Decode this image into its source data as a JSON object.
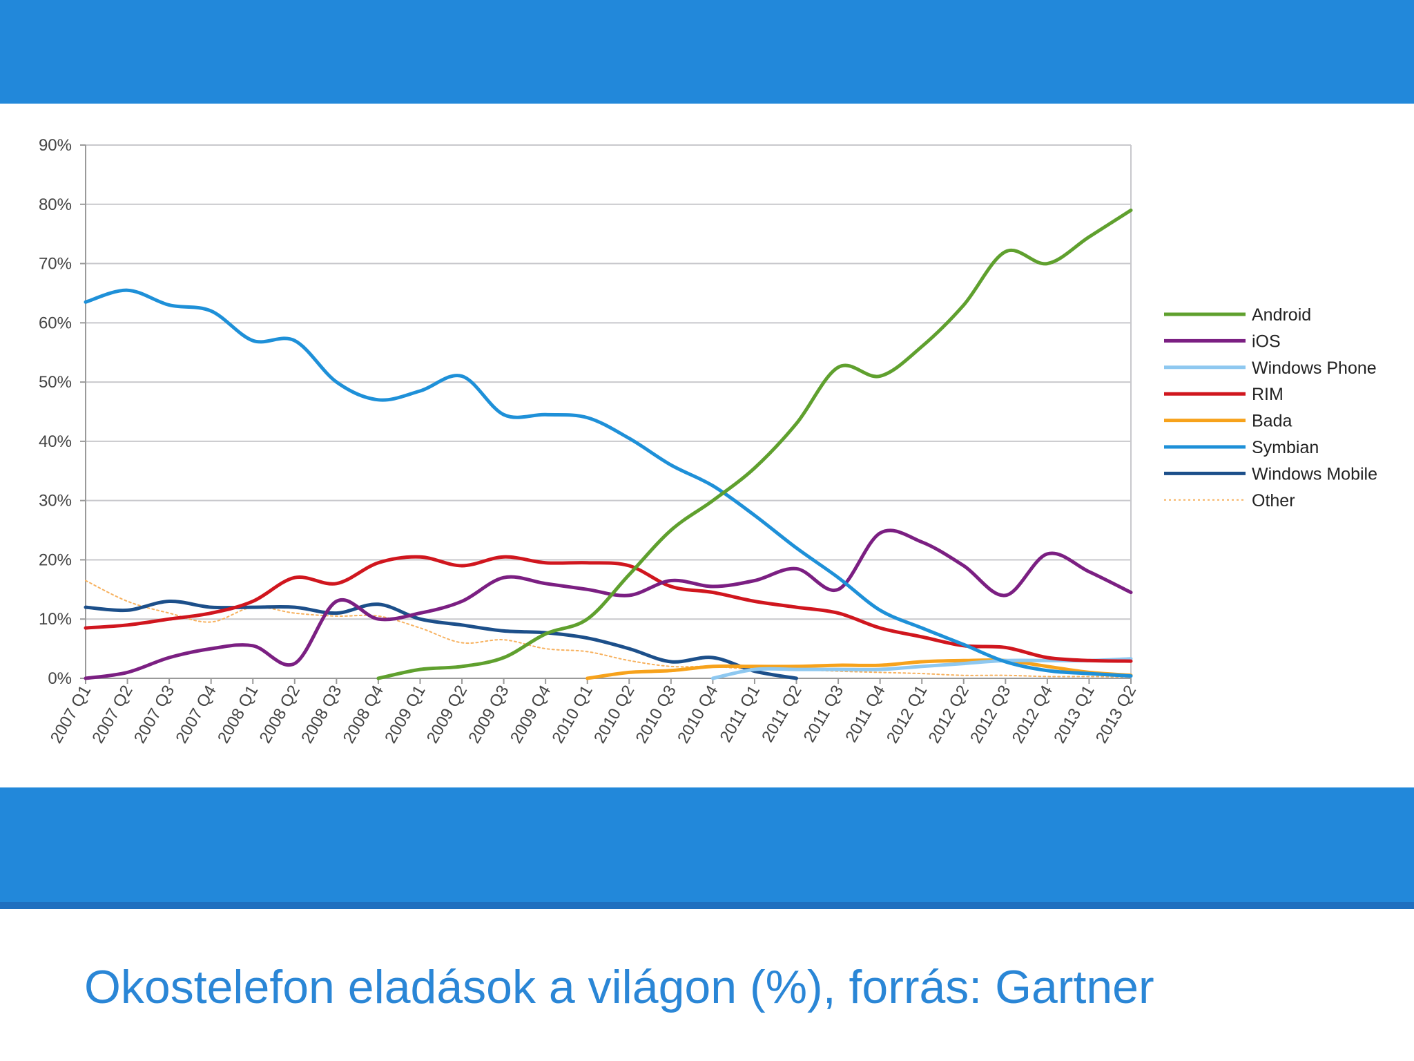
{
  "slide": {
    "caption": "Okostelefon eladások a világon (%), forrás: Gartner"
  },
  "chart_data": {
    "type": "line",
    "categories": [
      "2007 Q1",
      "2007 Q2",
      "2007 Q3",
      "2007 Q4",
      "2008 Q1",
      "2008 Q2",
      "2008 Q3",
      "2008 Q4",
      "2009 Q1",
      "2009 Q2",
      "2009 Q3",
      "2009 Q4",
      "2010 Q1",
      "2010 Q2",
      "2010 Q3",
      "2010 Q4",
      "2011 Q1",
      "2011 Q2",
      "2011 Q3",
      "2011 Q4",
      "2012 Q1",
      "2012 Q2",
      "2012 Q3",
      "2012 Q4",
      "2013 Q1",
      "2013 Q2"
    ],
    "ylim": [
      0,
      90
    ],
    "yticks": [
      "0%",
      "10%",
      "20%",
      "30%",
      "40%",
      "50%",
      "60%",
      "70%",
      "80%",
      "90%"
    ],
    "grid": true,
    "legend_position": "right",
    "series": [
      {
        "name": "Android",
        "color": "#5fa02e",
        "dashed": false,
        "values": [
          null,
          null,
          null,
          null,
          null,
          null,
          null,
          0,
          1.5,
          2,
          3.5,
          7.5,
          10,
          17.5,
          25,
          30,
          35.5,
          43,
          52.5,
          51,
          56,
          63,
          72,
          70,
          74.5,
          79
        ]
      },
      {
        "name": "iOS",
        "color": "#7b1f82",
        "dashed": false,
        "values": [
          0,
          1,
          3.5,
          5,
          5.5,
          2.5,
          13,
          10,
          11,
          13,
          17,
          16,
          15,
          14,
          16.5,
          15.5,
          16.5,
          18.5,
          15,
          24.5,
          23,
          19,
          14,
          21,
          18,
          14.5
        ]
      },
      {
        "name": "Windows Phone",
        "color": "#8ec8f0",
        "dashed": false,
        "values": [
          null,
          null,
          null,
          null,
          null,
          null,
          null,
          null,
          null,
          null,
          null,
          null,
          null,
          null,
          null,
          0,
          1.5,
          1.5,
          1.5,
          1.5,
          2,
          2.5,
          3,
          3,
          3,
          3.3
        ]
      },
      {
        "name": "RIM",
        "color": "#d0161e",
        "dashed": false,
        "values": [
          8.5,
          9,
          10,
          11,
          13,
          17,
          16,
          19.5,
          20.5,
          19,
          20.5,
          19.5,
          19.5,
          19,
          15.5,
          14.5,
          13,
          12,
          11,
          8.5,
          7,
          5.5,
          5.2,
          3.5,
          3,
          2.9
        ]
      },
      {
        "name": "Bada",
        "color": "#f7a21b",
        "dashed": false,
        "values": [
          null,
          null,
          null,
          null,
          null,
          null,
          null,
          null,
          null,
          null,
          null,
          null,
          0,
          1,
          1.3,
          2,
          2,
          2,
          2.2,
          2.2,
          2.8,
          3,
          3,
          2,
          1,
          0.5
        ]
      },
      {
        "name": "Symbian",
        "color": "#1e90d8",
        "dashed": false,
        "values": [
          63.5,
          65.5,
          63,
          62,
          57,
          57,
          50,
          47,
          48.5,
          51,
          44.5,
          44.5,
          44,
          40.5,
          36,
          32.5,
          27.5,
          22,
          17,
          11.5,
          8.5,
          5.7,
          2.8,
          1.3,
          0.8,
          0.4
        ]
      },
      {
        "name": "Windows Mobile",
        "color": "#1c4f8a",
        "dashed": false,
        "values": [
          12,
          11.5,
          13,
          12,
          12,
          12,
          11,
          12.5,
          10,
          9,
          8,
          7.7,
          6.8,
          5,
          2.8,
          3.5,
          1.2,
          0,
          null,
          null,
          null,
          null,
          null,
          null,
          null,
          null
        ]
      },
      {
        "name": "Other",
        "color": "#f7b15e",
        "dashed": true,
        "values": [
          16.5,
          13,
          11,
          9.5,
          12,
          11,
          10.5,
          10.5,
          8.5,
          6,
          6.5,
          5,
          4.5,
          3,
          2,
          2,
          1.5,
          1.5,
          1.2,
          1,
          0.8,
          0.5,
          0.5,
          0.3,
          0.3,
          0.2
        ]
      }
    ]
  }
}
